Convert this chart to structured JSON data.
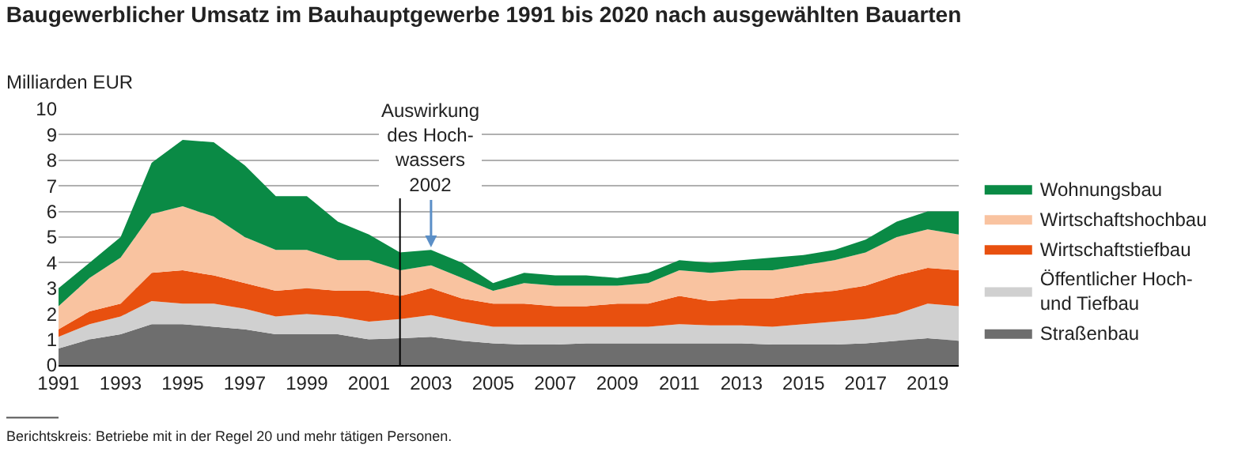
{
  "chart_data": {
    "type": "area",
    "stacked": true,
    "title": "Baugewerblicher Umsatz im Bauhauptgewerbe 1991 bis 2020 nach ausgewählten Bauarten",
    "ylabel": "Milliarden EUR",
    "x": [
      1991,
      1992,
      1993,
      1994,
      1995,
      1996,
      1997,
      1998,
      1999,
      2000,
      2001,
      2002,
      2003,
      2004,
      2005,
      2006,
      2007,
      2008,
      2009,
      2010,
      2011,
      2012,
      2013,
      2014,
      2015,
      2016,
      2017,
      2018,
      2019,
      2020
    ],
    "series": [
      {
        "name": "Straßenbau",
        "color": "#6e6e6e",
        "values": [
          0.65,
          1.0,
          1.2,
          1.6,
          1.6,
          1.5,
          1.4,
          1.2,
          1.2,
          1.2,
          1.0,
          1.05,
          1.1,
          0.95,
          0.85,
          0.8,
          0.8,
          0.85,
          0.85,
          0.85,
          0.85,
          0.85,
          0.85,
          0.8,
          0.8,
          0.8,
          0.85,
          0.95,
          1.05,
          0.95
        ]
      },
      {
        "name": "Öffentlicher Hoch-\nund Tiefbau",
        "color": "#d0d0d0",
        "values": [
          0.45,
          0.6,
          0.7,
          0.9,
          0.8,
          0.9,
          0.8,
          0.7,
          0.8,
          0.7,
          0.7,
          0.75,
          0.85,
          0.75,
          0.65,
          0.7,
          0.7,
          0.65,
          0.65,
          0.65,
          0.75,
          0.7,
          0.7,
          0.7,
          0.8,
          0.9,
          0.95,
          1.05,
          1.35,
          1.35
        ]
      },
      {
        "name": "Wirtschaftstiefbau",
        "color": "#e8500f",
        "values": [
          0.3,
          0.5,
          0.5,
          1.1,
          1.3,
          1.1,
          1.0,
          1.0,
          1.0,
          1.0,
          1.2,
          0.9,
          1.05,
          0.9,
          0.9,
          0.9,
          0.8,
          0.8,
          0.9,
          0.9,
          1.1,
          0.95,
          1.05,
          1.1,
          1.2,
          1.2,
          1.3,
          1.5,
          1.4,
          1.4
        ]
      },
      {
        "name": "Wirtschaftshochbau",
        "color": "#f9c3a0",
        "values": [
          0.9,
          1.3,
          1.8,
          2.3,
          2.5,
          2.3,
          1.8,
          1.6,
          1.5,
          1.2,
          1.2,
          1.0,
          0.9,
          0.8,
          0.5,
          0.8,
          0.8,
          0.8,
          0.7,
          0.8,
          1.0,
          1.1,
          1.1,
          1.1,
          1.1,
          1.2,
          1.3,
          1.5,
          1.5,
          1.4
        ]
      },
      {
        "name": "Wohnungsbau",
        "color": "#0a8a45",
        "values": [
          0.7,
          0.6,
          0.8,
          2.0,
          2.6,
          2.9,
          2.8,
          2.1,
          2.1,
          1.5,
          1.0,
          0.7,
          0.6,
          0.6,
          0.3,
          0.4,
          0.4,
          0.4,
          0.3,
          0.4,
          0.4,
          0.4,
          0.4,
          0.5,
          0.4,
          0.4,
          0.5,
          0.6,
          0.7,
          0.9
        ]
      }
    ],
    "xlim": [
      1991,
      2020
    ],
    "xticks": [
      1991,
      1993,
      1995,
      1997,
      1999,
      2001,
      2003,
      2005,
      2007,
      2009,
      2011,
      2013,
      2015,
      2017,
      2019
    ],
    "ylim": [
      0,
      10
    ],
    "yticks": [
      0,
      1,
      2,
      3,
      4,
      5,
      6,
      7,
      8,
      9,
      10
    ],
    "grid": "y",
    "legend": "right",
    "ref_lines": [
      {
        "axis": "x",
        "value": 2002,
        "color": "#000000"
      }
    ],
    "annotations": [
      {
        "text": "Auswirkung\ndes Hoch-\nwassers\n2002",
        "x": 2003,
        "y": 4.6
      },
      "Berichtskreis: Betriebe mit in der Regel 20 und mehr tätigen Personen."
    ]
  }
}
